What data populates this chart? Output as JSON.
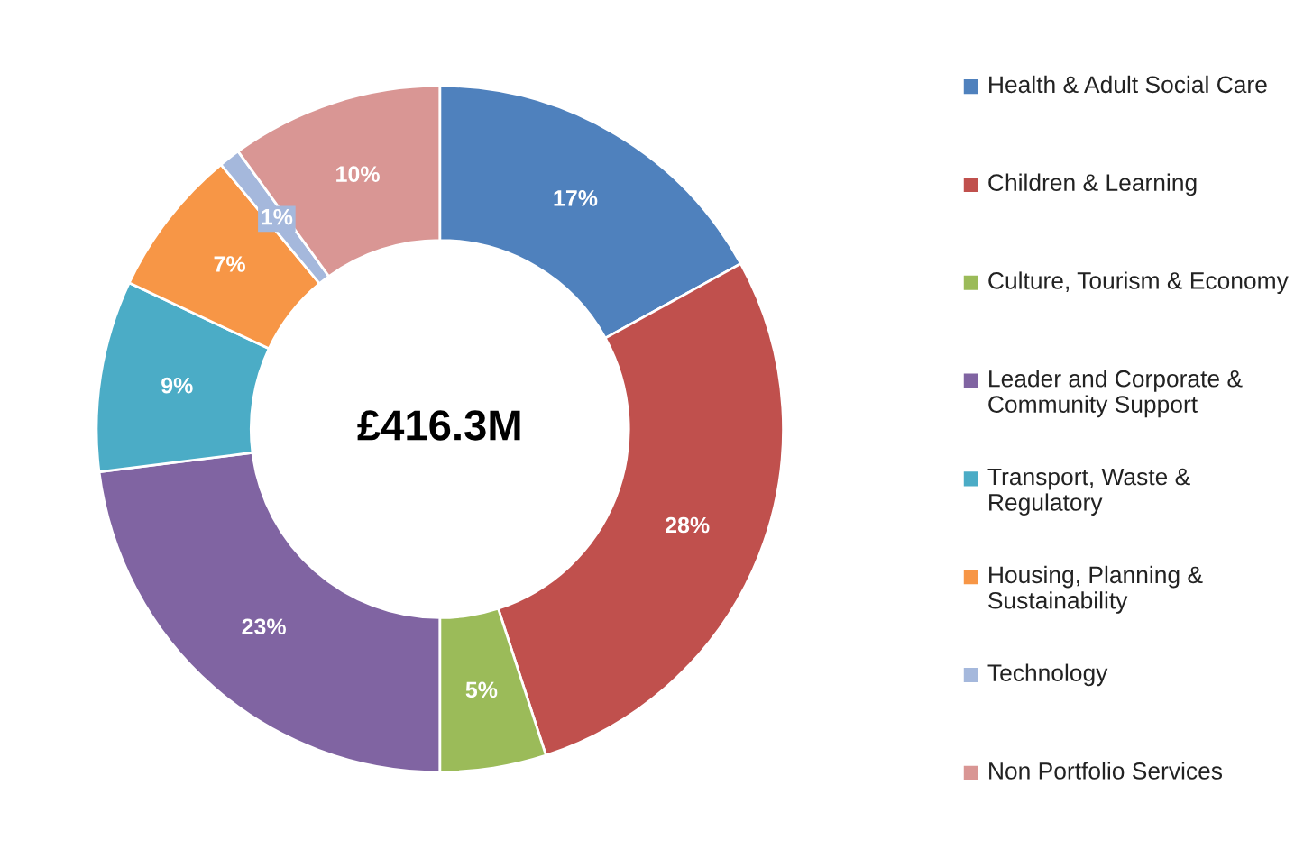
{
  "chart_data": {
    "type": "donut",
    "categories": [
      "Health & Adult Social Care",
      "Children & Learning",
      "Culture, Tourism & Economy",
      "Leader and Corporate & Community Support",
      "Transport, Waste & Regulatory",
      "Housing, Planning & Sustainability",
      "Technology",
      "Non Portfolio Services"
    ],
    "values": [
      17,
      28,
      5,
      23,
      9,
      7,
      1,
      10
    ],
    "colors": [
      "#4f81bd",
      "#c0504d",
      "#9bbb59",
      "#8064a2",
      "#4bacc6",
      "#f79646",
      "#a5b8dc",
      "#d99694"
    ],
    "value_labels": [
      "17%",
      "28%",
      "5%",
      "23%",
      "9%",
      "7%",
      "1%",
      "10%"
    ],
    "annotations": [
      "£416.3M"
    ],
    "legend": "right"
  }
}
